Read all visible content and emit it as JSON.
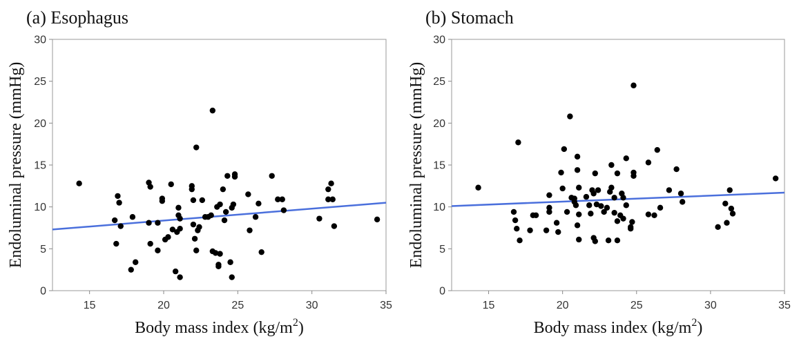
{
  "chart_data": [
    {
      "type": "scatter",
      "panel_title": "(a) Esophagus",
      "xlabel": "Body mass index (kg/m",
      "xlabel_sup": "2",
      "xlabel_end": ")",
      "ylabel": "Endoluminal pressure (mmHg)",
      "xlim": [
        12.5,
        35
      ],
      "ylim": [
        0,
        30
      ],
      "xticks": [
        15,
        20,
        25,
        30,
        35
      ],
      "yticks": [
        0,
        5,
        10,
        15,
        20,
        25,
        30
      ],
      "fit_line": {
        "x": [
          12.5,
          35
        ],
        "y": [
          7.3,
          10.5
        ],
        "color": "#4a6fdc"
      },
      "points": [
        [
          14.3,
          12.8
        ],
        [
          16.7,
          8.4
        ],
        [
          16.8,
          5.6
        ],
        [
          16.9,
          11.3
        ],
        [
          17.0,
          10.5
        ],
        [
          17.1,
          7.7
        ],
        [
          17.8,
          2.5
        ],
        [
          17.9,
          8.8
        ],
        [
          18.1,
          3.4
        ],
        [
          19.0,
          12.9
        ],
        [
          19.1,
          12.4
        ],
        [
          19.0,
          8.1
        ],
        [
          19.1,
          5.6
        ],
        [
          19.6,
          8.1
        ],
        [
          19.6,
          4.8
        ],
        [
          19.9,
          10.7
        ],
        [
          19.9,
          11.0
        ],
        [
          20.1,
          6.1
        ],
        [
          20.3,
          6.4
        ],
        [
          20.5,
          12.7
        ],
        [
          20.6,
          7.3
        ],
        [
          20.8,
          2.3
        ],
        [
          20.9,
          7.0
        ],
        [
          21.0,
          9.9
        ],
        [
          21.0,
          9.0
        ],
        [
          21.1,
          8.6
        ],
        [
          21.1,
          7.4
        ],
        [
          21.1,
          1.6
        ],
        [
          21.9,
          12.5
        ],
        [
          21.9,
          12.1
        ],
        [
          22.0,
          10.8
        ],
        [
          22.0,
          7.9
        ],
        [
          22.1,
          6.2
        ],
        [
          22.2,
          17.1
        ],
        [
          22.2,
          4.8
        ],
        [
          22.3,
          7.2
        ],
        [
          22.4,
          7.6
        ],
        [
          22.6,
          10.8
        ],
        [
          22.8,
          8.8
        ],
        [
          23.0,
          8.8
        ],
        [
          23.2,
          9.0
        ],
        [
          23.3,
          21.5
        ],
        [
          23.3,
          4.7
        ],
        [
          23.5,
          4.5
        ],
        [
          23.6,
          10.0
        ],
        [
          23.7,
          3.1
        ],
        [
          23.7,
          2.9
        ],
        [
          23.8,
          4.4
        ],
        [
          23.8,
          10.3
        ],
        [
          24.0,
          12.1
        ],
        [
          24.1,
          8.4
        ],
        [
          24.2,
          9.4
        ],
        [
          24.3,
          13.7
        ],
        [
          24.5,
          3.4
        ],
        [
          24.6,
          9.9
        ],
        [
          24.6,
          1.6
        ],
        [
          24.7,
          10.3
        ],
        [
          24.8,
          13.9
        ],
        [
          24.8,
          13.6
        ],
        [
          25.7,
          11.5
        ],
        [
          25.8,
          7.2
        ],
        [
          26.2,
          8.8
        ],
        [
          26.4,
          10.4
        ],
        [
          26.6,
          4.6
        ],
        [
          27.3,
          13.7
        ],
        [
          27.7,
          10.9
        ],
        [
          28.0,
          10.9
        ],
        [
          28.1,
          9.6
        ],
        [
          30.5,
          8.6
        ],
        [
          31.1,
          12.1
        ],
        [
          31.3,
          12.8
        ],
        [
          31.1,
          10.9
        ],
        [
          31.4,
          10.9
        ],
        [
          31.5,
          7.7
        ],
        [
          34.4,
          8.5
        ]
      ]
    },
    {
      "type": "scatter",
      "panel_title": "(b) Stomach",
      "xlabel": "Body mass index (kg/m",
      "xlabel_sup": "2",
      "xlabel_end": ")",
      "ylabel": "Endoluminal pressure (mmHg)",
      "xlim": [
        12.5,
        35
      ],
      "ylim": [
        0,
        30
      ],
      "xticks": [
        15,
        20,
        25,
        30,
        35
      ],
      "yticks": [
        0,
        5,
        10,
        15,
        20,
        25,
        30
      ],
      "fit_line": {
        "x": [
          12.5,
          35
        ],
        "y": [
          10.1,
          11.7
        ],
        "color": "#4a6fdc"
      },
      "points": [
        [
          14.3,
          12.3
        ],
        [
          16.7,
          9.4
        ],
        [
          16.8,
          8.4
        ],
        [
          16.9,
          7.4
        ],
        [
          17.1,
          6.0
        ],
        [
          17.0,
          17.7
        ],
        [
          17.8,
          7.2
        ],
        [
          18.0,
          9.0
        ],
        [
          18.2,
          9.0
        ],
        [
          18.9,
          7.2
        ],
        [
          19.1,
          11.4
        ],
        [
          19.1,
          9.9
        ],
        [
          19.1,
          9.4
        ],
        [
          19.6,
          8.1
        ],
        [
          19.7,
          7.0
        ],
        [
          19.9,
          14.1
        ],
        [
          20.0,
          12.2
        ],
        [
          20.1,
          16.9
        ],
        [
          20.3,
          9.4
        ],
        [
          20.5,
          20.8
        ],
        [
          20.6,
          11.1
        ],
        [
          20.8,
          10.6
        ],
        [
          20.8,
          11.0
        ],
        [
          20.9,
          10.2
        ],
        [
          21.0,
          16.0
        ],
        [
          21.0,
          14.4
        ],
        [
          21.0,
          7.8
        ],
        [
          21.1,
          12.3
        ],
        [
          21.1,
          9.1
        ],
        [
          21.1,
          6.1
        ],
        [
          21.6,
          11.2
        ],
        [
          21.8,
          10.2
        ],
        [
          21.9,
          9.2
        ],
        [
          22.0,
          12.0
        ],
        [
          22.1,
          11.6
        ],
        [
          22.1,
          6.3
        ],
        [
          22.2,
          14.0
        ],
        [
          22.2,
          5.9
        ],
        [
          22.3,
          10.3
        ],
        [
          22.4,
          12.0
        ],
        [
          22.6,
          10.1
        ],
        [
          22.8,
          9.4
        ],
        [
          23.0,
          9.9
        ],
        [
          23.2,
          11.8
        ],
        [
          23.1,
          6.0
        ],
        [
          23.3,
          15.0
        ],
        [
          23.3,
          12.3
        ],
        [
          23.5,
          11.1
        ],
        [
          23.5,
          9.3
        ],
        [
          23.7,
          14.0
        ],
        [
          23.7,
          8.3
        ],
        [
          23.7,
          6.0
        ],
        [
          23.9,
          9.0
        ],
        [
          24.0,
          11.6
        ],
        [
          24.1,
          8.6
        ],
        [
          24.1,
          11.1
        ],
        [
          24.3,
          15.8
        ],
        [
          24.3,
          10.2
        ],
        [
          24.6,
          7.6
        ],
        [
          24.6,
          7.4
        ],
        [
          24.7,
          8.2
        ],
        [
          24.8,
          14.1
        ],
        [
          24.8,
          13.7
        ],
        [
          24.8,
          24.5
        ],
        [
          25.8,
          15.3
        ],
        [
          25.8,
          9.1
        ],
        [
          26.2,
          9.0
        ],
        [
          26.4,
          16.8
        ],
        [
          26.6,
          9.9
        ],
        [
          27.2,
          12.0
        ],
        [
          27.7,
          14.5
        ],
        [
          28.0,
          11.6
        ],
        [
          28.1,
          10.6
        ],
        [
          30.5,
          7.6
        ],
        [
          31.0,
          10.4
        ],
        [
          31.1,
          8.1
        ],
        [
          31.3,
          12.0
        ],
        [
          31.4,
          9.8
        ],
        [
          31.5,
          9.2
        ],
        [
          34.4,
          13.4
        ]
      ]
    }
  ]
}
